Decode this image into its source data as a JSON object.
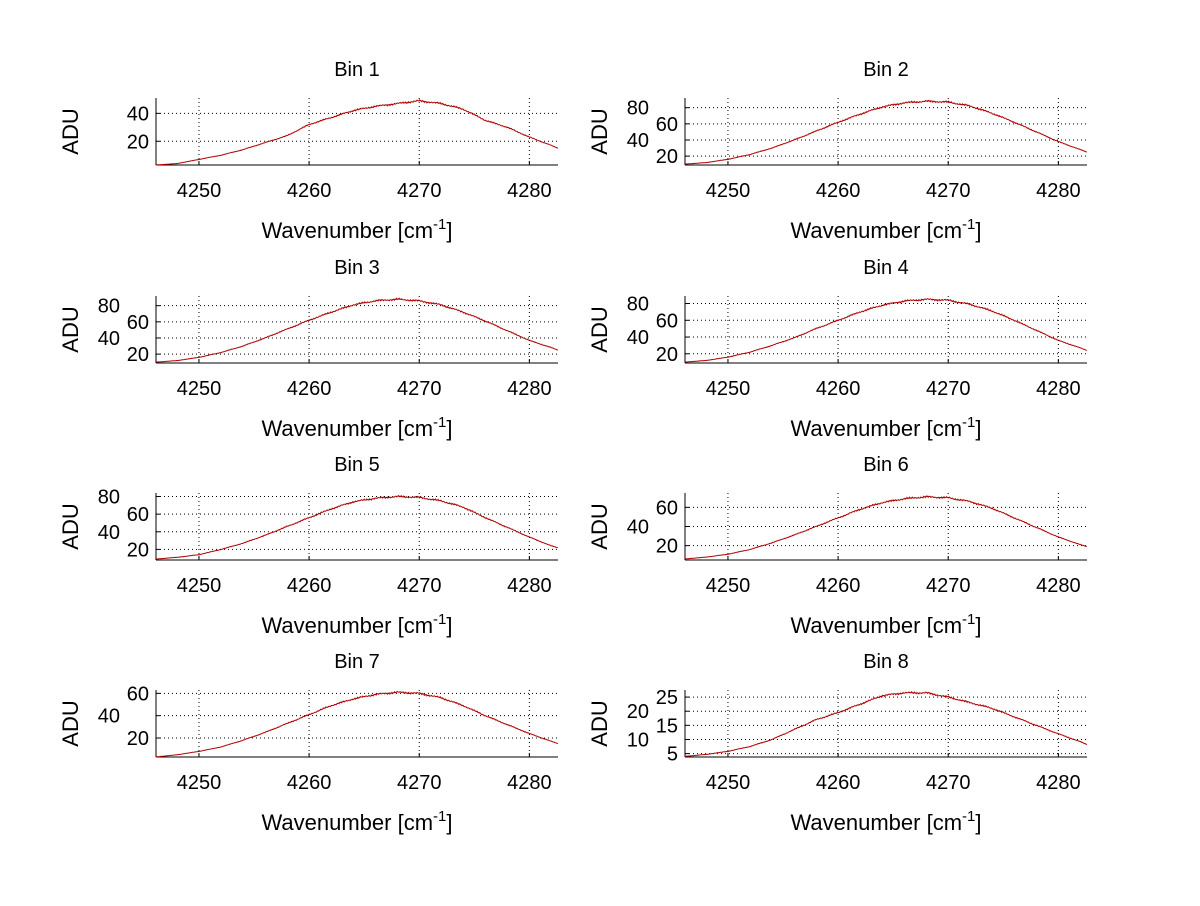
{
  "chart_data": [
    {
      "type": "line",
      "title": "Bin 1",
      "xlabel": "Wavenumber [cm",
      "xlabel_sup": "-1",
      "xlabel_end": "]",
      "ylabel": "ADU",
      "xlim": [
        4246.1,
        4282.6
      ],
      "ylim": [
        3,
        51
      ],
      "xticks": [
        4250,
        4260,
        4270,
        4280
      ],
      "yticks": [
        20,
        40
      ],
      "grid": true,
      "color": "#b00000",
      "x": [
        4246,
        4248,
        4250,
        4252,
        4254,
        4256,
        4258,
        4260,
        4262,
        4264,
        4266,
        4268,
        4270,
        4272,
        4274,
        4276,
        4278,
        4280,
        4282,
        4282.6
      ],
      "y": [
        3,
        4,
        7,
        10,
        14,
        19,
        24,
        32,
        37,
        42,
        45,
        47,
        49,
        47,
        43,
        35,
        30,
        23,
        17,
        15
      ]
    },
    {
      "type": "line",
      "title": "Bin 2",
      "xlabel": "Wavenumber [cm",
      "xlabel_sup": "-1",
      "xlabel_end": "]",
      "ylabel": "ADU",
      "xlim": [
        4246.1,
        4282.6
      ],
      "ylim": [
        9,
        92
      ],
      "xticks": [
        4250,
        4260,
        4270,
        4280
      ],
      "yticks": [
        20,
        40,
        60,
        80
      ],
      "grid": true,
      "color": "#b00000",
      "x": [
        4246,
        4248,
        4250,
        4252,
        4254,
        4256,
        4258,
        4260,
        4262,
        4264,
        4266,
        4268,
        4270,
        4272,
        4274,
        4276,
        4278,
        4280,
        4282,
        4282.6
      ],
      "y": [
        10,
        12,
        16,
        22,
        30,
        40,
        51,
        62,
        72,
        81,
        86,
        88,
        87,
        82,
        73,
        62,
        50,
        38,
        28,
        25
      ]
    },
    {
      "type": "line",
      "title": "Bin 3",
      "xlabel": "Wavenumber [cm",
      "xlabel_sup": "-1",
      "xlabel_end": "]",
      "ylabel": "ADU",
      "xlim": [
        4246.1,
        4282.6
      ],
      "ylim": [
        9,
        92
      ],
      "xticks": [
        4250,
        4260,
        4270,
        4280
      ],
      "yticks": [
        20,
        40,
        60,
        80
      ],
      "grid": true,
      "color": "#b00000",
      "x": [
        4246,
        4248,
        4250,
        4252,
        4254,
        4256,
        4258,
        4260,
        4262,
        4264,
        4266,
        4268,
        4270,
        4272,
        4274,
        4276,
        4278,
        4280,
        4282,
        4282.6
      ],
      "y": [
        10,
        12,
        16,
        22,
        30,
        40,
        51,
        62,
        72,
        81,
        86,
        88,
        86,
        81,
        72,
        61,
        49,
        37,
        28,
        25
      ]
    },
    {
      "type": "line",
      "title": "Bin 4",
      "xlabel": "Wavenumber [cm",
      "xlabel_sup": "-1",
      "xlabel_end": "]",
      "ylabel": "ADU",
      "xlim": [
        4246.1,
        4282.6
      ],
      "ylim": [
        9,
        89
      ],
      "xticks": [
        4250,
        4260,
        4270,
        4280
      ],
      "yticks": [
        20,
        40,
        60,
        80
      ],
      "grid": true,
      "color": "#b00000",
      "x": [
        4246,
        4248,
        4250,
        4252,
        4254,
        4256,
        4258,
        4260,
        4262,
        4264,
        4266,
        4268,
        4270,
        4272,
        4274,
        4276,
        4278,
        4280,
        4282,
        4282.6
      ],
      "y": [
        10,
        12,
        16,
        22,
        30,
        39,
        50,
        60,
        70,
        78,
        83,
        85,
        84,
        79,
        71,
        60,
        48,
        36,
        27,
        24
      ]
    },
    {
      "type": "line",
      "title": "Bin 5",
      "xlabel": "Wavenumber [cm",
      "xlabel_sup": "-1",
      "xlabel_end": "]",
      "ylabel": "ADU",
      "xlim": [
        4246.1,
        4282.6
      ],
      "ylim": [
        8,
        84
      ],
      "xticks": [
        4250,
        4260,
        4270,
        4280
      ],
      "yticks": [
        20,
        40,
        60,
        80
      ],
      "grid": true,
      "color": "#b00000",
      "x": [
        4246,
        4248,
        4250,
        4252,
        4254,
        4256,
        4258,
        4260,
        4262,
        4264,
        4266,
        4268,
        4270,
        4272,
        4274,
        4276,
        4278,
        4280,
        4282,
        4282.6
      ],
      "y": [
        9,
        11,
        14,
        20,
        27,
        36,
        46,
        56,
        66,
        74,
        78,
        80,
        79,
        75,
        68,
        56,
        45,
        34,
        24,
        22
      ]
    },
    {
      "type": "line",
      "title": "Bin 6",
      "xlabel": "Wavenumber [cm",
      "xlabel_sup": "-1",
      "xlabel_end": "]",
      "ylabel": "ADU",
      "xlim": [
        4246.1,
        4282.6
      ],
      "ylim": [
        5,
        75
      ],
      "xticks": [
        4250,
        4260,
        4270,
        4280
      ],
      "yticks": [
        20,
        40,
        60
      ],
      "grid": true,
      "color": "#b00000",
      "x": [
        4246,
        4248,
        4250,
        4252,
        4254,
        4256,
        4258,
        4260,
        4262,
        4264,
        4266,
        4268,
        4270,
        4272,
        4274,
        4276,
        4278,
        4280,
        4282,
        4282.6
      ],
      "y": [
        6,
        8,
        11,
        16,
        23,
        31,
        40,
        49,
        58,
        65,
        69,
        71,
        70,
        66,
        59,
        49,
        39,
        29,
        21,
        19
      ]
    },
    {
      "type": "line",
      "title": "Bin 7",
      "xlabel": "Wavenumber [cm",
      "xlabel_sup": "-1",
      "xlabel_end": "]",
      "ylabel": "ADU",
      "xlim": [
        4246.1,
        4282.6
      ],
      "ylim": [
        3,
        63
      ],
      "xticks": [
        4250,
        4260,
        4270,
        4280
      ],
      "yticks": [
        20,
        40,
        60
      ],
      "grid": true,
      "color": "#b00000",
      "x": [
        4246,
        4248,
        4250,
        4252,
        4254,
        4256,
        4258,
        4260,
        4262,
        4264,
        4266,
        4268,
        4270,
        4272,
        4274,
        4276,
        4278,
        4280,
        4282,
        4282.6
      ],
      "y": [
        3,
        5,
        8,
        12,
        18,
        25,
        33,
        41,
        49,
        55,
        59,
        61,
        60,
        56,
        49,
        40,
        32,
        24,
        17,
        15
      ]
    },
    {
      "type": "line",
      "title": "Bin 8",
      "xlabel": "Wavenumber [cm",
      "xlabel_sup": "-1",
      "xlabel_end": "]",
      "ylabel": "ADU",
      "xlim": [
        4246.1,
        4282.6
      ],
      "ylim": [
        3.8,
        27.5
      ],
      "xticks": [
        4250,
        4260,
        4270,
        4280
      ],
      "yticks": [
        5,
        10,
        15,
        20,
        25
      ],
      "grid": true,
      "color": "#b00000",
      "x": [
        4246,
        4248,
        4250,
        4252,
        4254,
        4256,
        4258,
        4260,
        4262,
        4264,
        4266,
        4268,
        4270,
        4272,
        4274,
        4276,
        4278,
        4280,
        4282,
        4282.6
      ],
      "y": [
        4,
        4.7,
        5.8,
        7.5,
        10,
        13.5,
        17,
        19.5,
        22.5,
        25.5,
        26.5,
        26.5,
        25,
        23,
        21,
        18,
        15,
        12,
        9.2,
        8.2
      ]
    }
  ]
}
